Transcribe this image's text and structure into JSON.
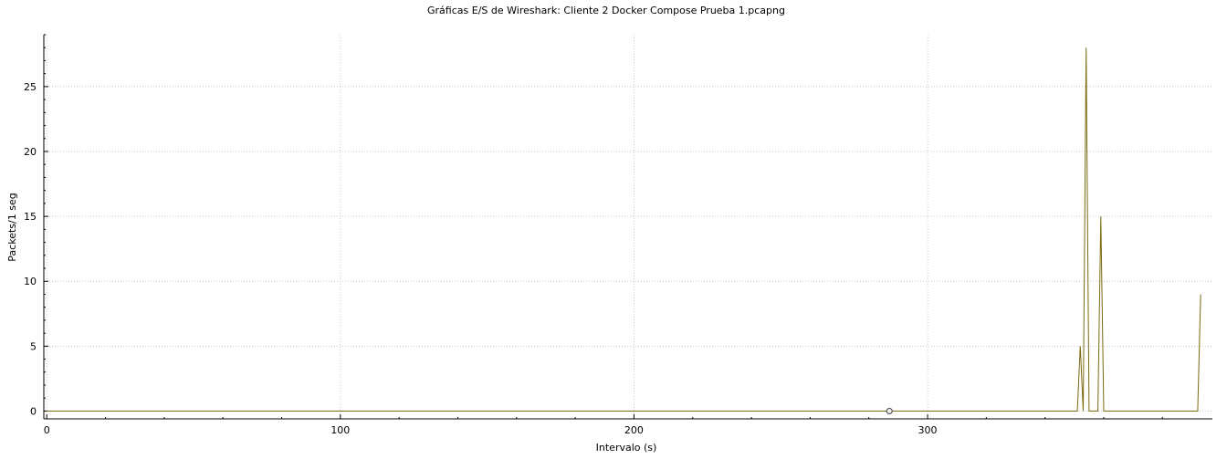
{
  "chart_data": {
    "type": "line",
    "title": "Gráficas E/S de Wireshark: Cliente 2 Docker Compose Prueba 1.pcapng",
    "xlabel": "Intervalo (s)",
    "ylabel": "Packets/1 seg",
    "xlim": [
      -1,
      397
    ],
    "ylim": [
      -0.6,
      29
    ],
    "x_ticks": [
      0,
      100,
      200,
      300
    ],
    "y_ticks": [
      0,
      5,
      10,
      15,
      20,
      25
    ],
    "grid": true,
    "legend": "none",
    "series": [
      {
        "color": "#7a6a12",
        "points": [
          [
            0,
            0
          ],
          [
            351,
            0
          ],
          [
            352,
            5
          ],
          [
            353,
            0
          ],
          [
            354,
            28
          ],
          [
            355,
            0
          ],
          [
            358,
            0
          ],
          [
            359,
            15
          ],
          [
            360,
            0
          ],
          [
            392,
            0
          ],
          [
            393,
            9
          ]
        ]
      }
    ],
    "marker": {
      "x": 287,
      "y": 0,
      "icon": "open-circle"
    }
  }
}
